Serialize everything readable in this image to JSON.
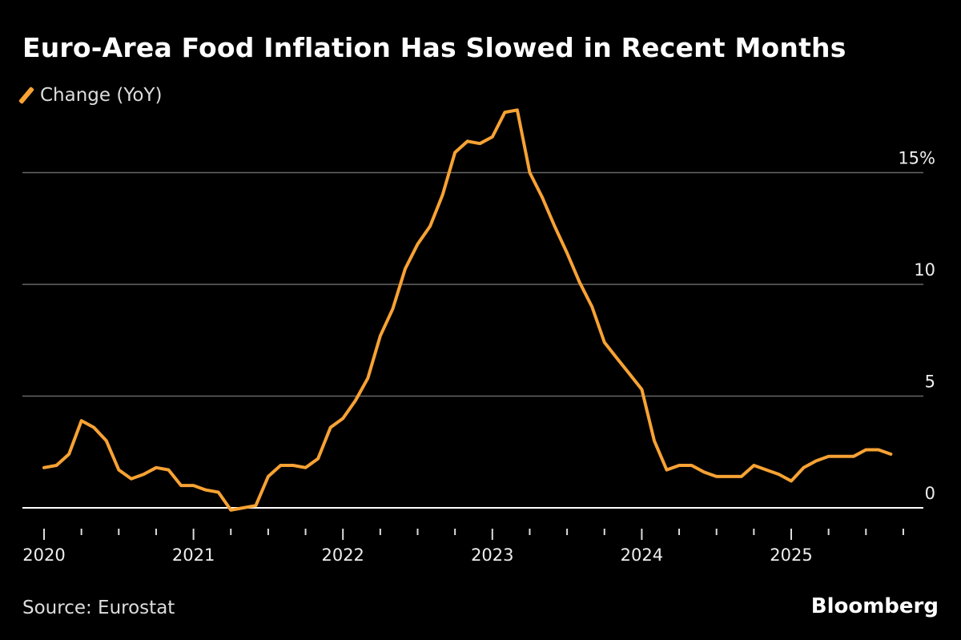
{
  "title": "Euro-Area Food Inflation Has Slowed in Recent Months",
  "legend": {
    "label": "Change (YoY)"
  },
  "source": "Source: Eurostat",
  "brand": "Bloomberg",
  "colors": {
    "line": "#f7a234",
    "grid": "#666666",
    "zero": "#ffffff",
    "background": "#000000"
  },
  "chart_data": {
    "type": "line",
    "title": "Euro-Area Food Inflation Has Slowed in Recent Months",
    "xlabel": "",
    "ylabel": "",
    "start": "2020-01",
    "frequency": "monthly",
    "ylim": [
      -0.5,
      18
    ],
    "yticks": [
      0,
      5,
      10,
      15
    ],
    "ytick_labels": [
      "0",
      "5",
      "10",
      "15%"
    ],
    "xtick_labels": [
      "2020",
      "2021",
      "2022",
      "2023",
      "2024",
      "2025"
    ],
    "grid": true,
    "legend_position": "top-left",
    "series": [
      {
        "name": "Change (YoY)",
        "values": [
          1.8,
          1.9,
          2.4,
          3.9,
          3.6,
          3.0,
          1.7,
          1.3,
          1.5,
          1.8,
          1.7,
          1.0,
          1.0,
          0.8,
          0.7,
          -0.1,
          0.0,
          0.1,
          1.4,
          1.9,
          1.9,
          1.8,
          2.2,
          3.6,
          4.0,
          4.8,
          5.8,
          7.7,
          8.9,
          10.7,
          11.8,
          12.6,
          14.0,
          15.9,
          16.4,
          16.3,
          16.6,
          17.7,
          17.8,
          15.0,
          13.9,
          12.6,
          11.4,
          10.1,
          9.0,
          7.4,
          6.7,
          6.0,
          5.3,
          3.0,
          1.7,
          1.9,
          1.9,
          1.6,
          1.4,
          1.4,
          1.4,
          1.9,
          1.7,
          1.5,
          1.2,
          1.8,
          2.1,
          2.3,
          2.3,
          2.3,
          2.6,
          2.6,
          2.4
        ]
      }
    ]
  }
}
